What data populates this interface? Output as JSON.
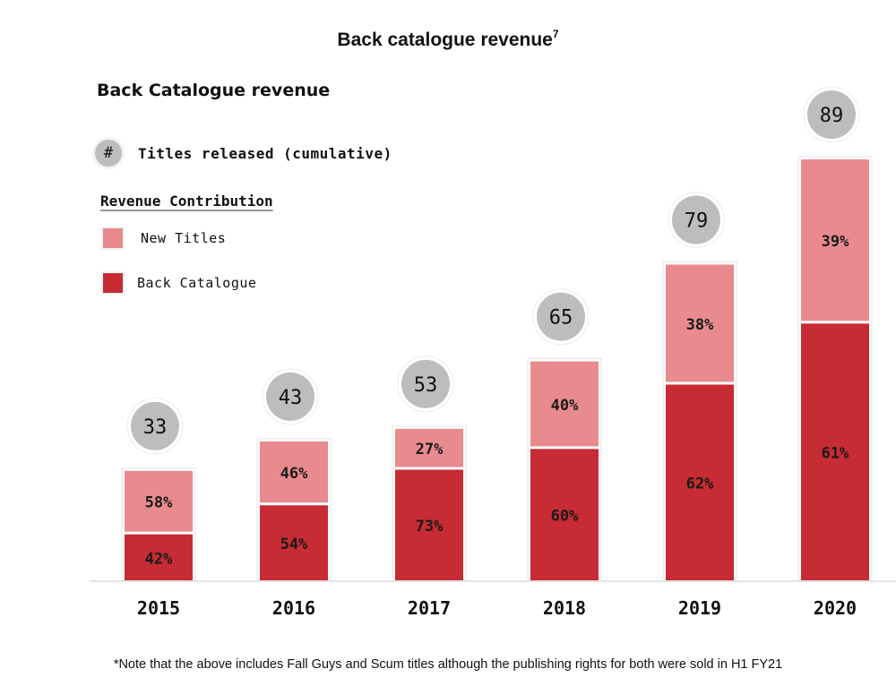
{
  "title": "Back catalogue revenue",
  "title_superscript": "7",
  "subtitle": "Back Catalogue revenue",
  "legend": {
    "count_symbol": "#",
    "count_label": "Titles released (cumulative)",
    "section_heading": "Revenue Contribution",
    "items": [
      {
        "label": "New Titles",
        "color": "#e88a8e"
      },
      {
        "label": "Back Catalogue",
        "color": "#c72b33"
      }
    ]
  },
  "footnote": "*Note that the above includes Fall Guys and Scum titles although the publishing rights for both were sold in H1 FY21",
  "chart_data": {
    "type": "bar",
    "stacked": true,
    "title": "Back catalogue revenue",
    "subtitle": "Back Catalogue revenue",
    "xlabel": "",
    "ylabel": "",
    "categories": [
      "2015",
      "2016",
      "2017",
      "2018",
      "2019",
      "2020"
    ],
    "series": [
      {
        "name": "Back Catalogue",
        "color": "#c72b33",
        "values": [
          42,
          54,
          73,
          60,
          62,
          61
        ],
        "labels": [
          "42%",
          "54%",
          "73%",
          "60%",
          "62%",
          "61%"
        ]
      },
      {
        "name": "New Titles",
        "color": "#e88a8e",
        "values": [
          58,
          46,
          27,
          40,
          38,
          39
        ],
        "labels": [
          "58%",
          "46%",
          "27%",
          "40%",
          "38%",
          "39%"
        ]
      }
    ],
    "relative_total_revenue_index": [
      26,
      33,
      36,
      52,
      75,
      100
    ],
    "titles_released_cumulative": [
      33,
      43,
      53,
      65,
      79,
      89
    ],
    "y_axis_shown": false,
    "grid": false,
    "legend_position": "top-left"
  }
}
